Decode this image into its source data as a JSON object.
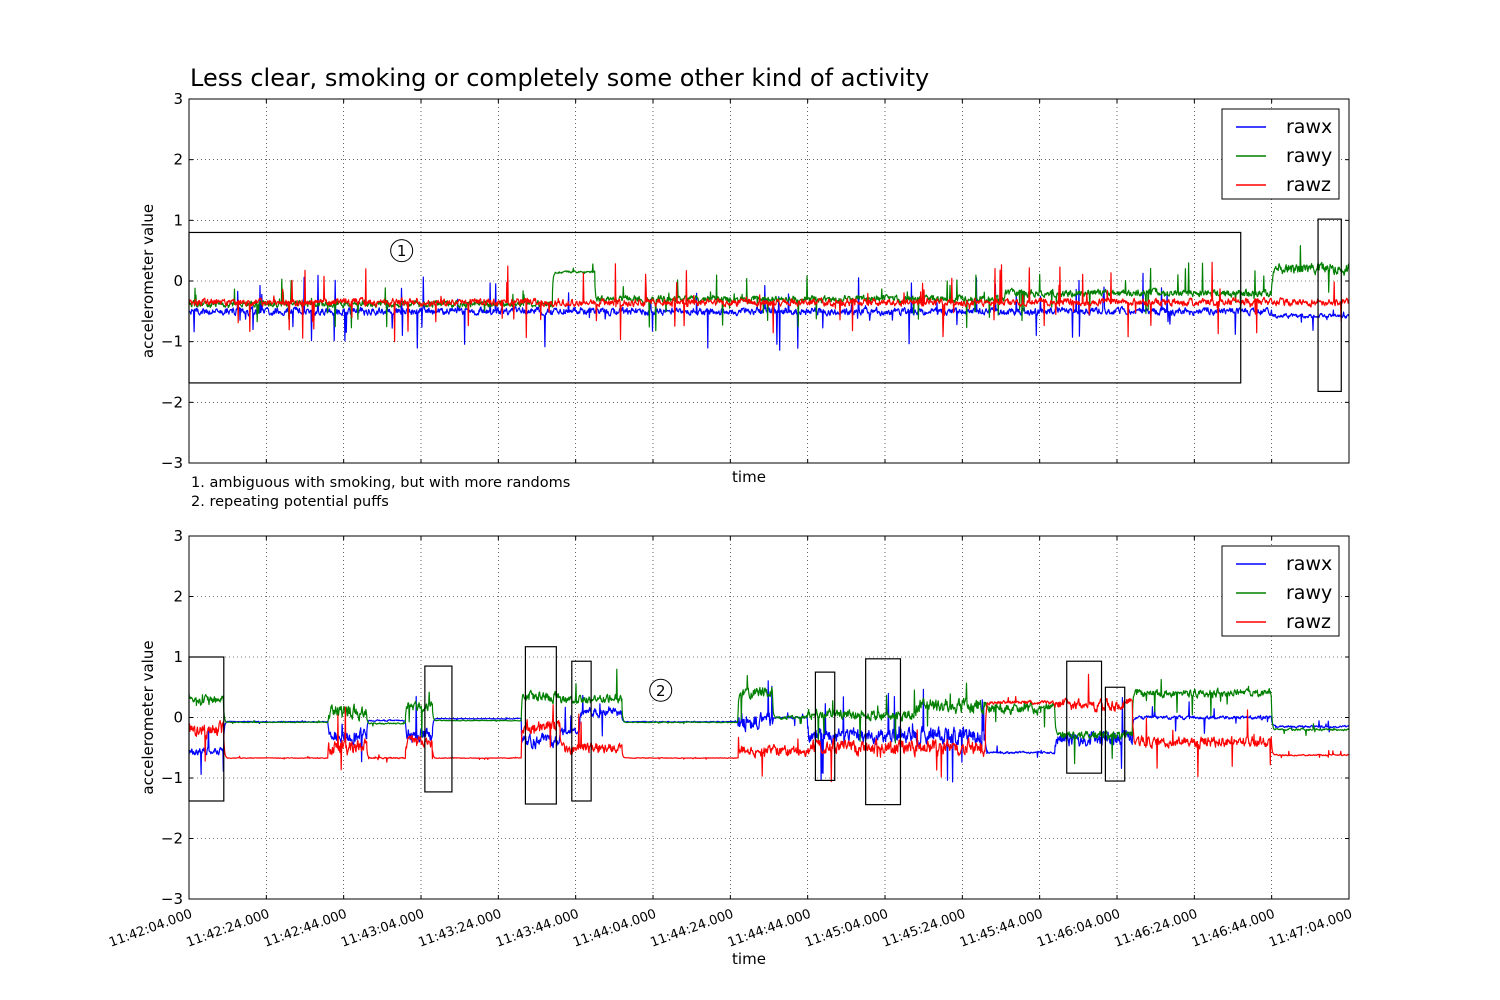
{
  "figure": {
    "title": "Less clear, smoking or completely some other kind of activity",
    "notes": [
      "1. ambiguous with smoking, but with more randoms",
      "2. repeating potential puffs"
    ]
  },
  "chart_data": [
    {
      "type": "line",
      "title": "Less clear, smoking or completely some other kind of activity",
      "xlabel": "time",
      "ylabel": "accelerometer value",
      "ylim": [
        -3,
        3
      ],
      "yticks": [
        -3,
        -2,
        -1,
        0,
        1,
        2,
        3
      ],
      "xlim": [
        "11:42:04.000",
        "11:47:04.000"
      ],
      "xticks": [
        "11:42:04.000",
        "11:42:24.000",
        "11:42:44.000",
        "11:43:04.000",
        "11:43:24.000",
        "11:43:44.000",
        "11:44:04.000",
        "11:44:24.000",
        "11:44:44.000",
        "11:45:04.000",
        "11:45:24.000",
        "11:45:44.000",
        "11:46:04.000",
        "11:46:24.000",
        "11:46:44.000",
        "11:47:04.000"
      ],
      "show_xtick_labels": false,
      "grid": true,
      "legend": "top-right",
      "series": [
        {
          "name": "rawx",
          "color": "#0000ff",
          "segments": [
            {
              "from": "11:42:04.000",
              "to": "11:46:44.000",
              "level": -0.5,
              "noise": 0.1,
              "spike": 0.45
            },
            {
              "from": "11:46:44.000",
              "to": "11:47:04.000",
              "level": -0.58,
              "noise": 0.06,
              "spike": 0.25
            }
          ]
        },
        {
          "name": "rawy",
          "color": "#008000",
          "segments": [
            {
              "from": "11:42:04.000",
              "to": "11:43:38.000",
              "level": -0.38,
              "noise": 0.09,
              "spike": 0.3
            },
            {
              "from": "11:43:38.000",
              "to": "11:43:49.000",
              "level": 0.15,
              "noise": 0.03,
              "spike": 0.1
            },
            {
              "from": "11:43:49.000",
              "to": "11:45:35.000",
              "level": -0.3,
              "noise": 0.1,
              "spike": 0.35
            },
            {
              "from": "11:45:35.000",
              "to": "11:46:44.000",
              "level": -0.2,
              "noise": 0.1,
              "spike": 0.35
            },
            {
              "from": "11:46:44.000",
              "to": "11:47:04.000",
              "level": 0.2,
              "noise": 0.15,
              "spike": 0.3
            }
          ]
        },
        {
          "name": "rawz",
          "color": "#ff0000",
          "segments": [
            {
              "from": "11:42:04.000",
              "to": "11:47:04.000",
              "level": -0.35,
              "noise": 0.1,
              "spike": 0.45
            }
          ]
        }
      ],
      "annotations": [
        {
          "type": "box",
          "x": [
            "11:42:04.000",
            "11:46:36.000"
          ],
          "y": [
            -1.68,
            0.8
          ]
        },
        {
          "type": "box",
          "x": [
            "11:46:56.000",
            "11:47:02.000"
          ],
          "y": [
            -1.82,
            1.02
          ]
        },
        {
          "type": "marker",
          "label": "1",
          "x": "11:42:59.000",
          "y": 0.5
        }
      ]
    },
    {
      "type": "line",
      "xlabel": "time",
      "ylabel": "accelerometer value",
      "ylim": [
        -3,
        3
      ],
      "yticks": [
        -3,
        -2,
        -1,
        0,
        1,
        2,
        3
      ],
      "xlim": [
        "11:42:04.000",
        "11:47:04.000"
      ],
      "xticks": [
        "11:42:04.000",
        "11:42:24.000",
        "11:42:44.000",
        "11:43:04.000",
        "11:43:24.000",
        "11:43:44.000",
        "11:44:04.000",
        "11:44:24.000",
        "11:44:44.000",
        "11:45:04.000",
        "11:45:24.000",
        "11:45:44.000",
        "11:46:04.000",
        "11:46:24.000",
        "11:46:44.000",
        "11:47:04.000"
      ],
      "show_xtick_labels": true,
      "grid": true,
      "legend": "top-right",
      "series": [
        {
          "name": "rawx",
          "color": "#0000ff",
          "segments": [
            {
              "from": "11:42:04.000",
              "to": "11:42:13.000",
              "level": -0.55,
              "noise": 0.1,
              "spike": 0.4
            },
            {
              "from": "11:42:13.000",
              "to": "11:42:40.000",
              "level": -0.07,
              "noise": 0.01,
              "spike": 0.02
            },
            {
              "from": "11:42:40.000",
              "to": "11:42:50.000",
              "level": -0.3,
              "noise": 0.2,
              "spike": 0.6
            },
            {
              "from": "11:42:50.000",
              "to": "11:43:00.000",
              "level": -0.05,
              "noise": 0.02,
              "spike": 0.05
            },
            {
              "from": "11:43:00.000",
              "to": "11:43:07.000",
              "level": -0.3,
              "noise": 0.2,
              "spike": 0.5
            },
            {
              "from": "11:43:07.000",
              "to": "11:43:30.000",
              "level": -0.02,
              "noise": 0.01,
              "spike": 0.02
            },
            {
              "from": "11:43:30.000",
              "to": "11:43:40.000",
              "level": -0.4,
              "noise": 0.2,
              "spike": 0.7
            },
            {
              "from": "11:43:40.000",
              "to": "11:43:45.000",
              "level": -0.25,
              "noise": 0.1,
              "spike": 0.3
            },
            {
              "from": "11:43:45.000",
              "to": "11:43:56.000",
              "level": 0.08,
              "noise": 0.12,
              "spike": 0.3
            },
            {
              "from": "11:43:56.000",
              "to": "11:44:26.000",
              "level": -0.07,
              "noise": 0.01,
              "spike": 0.02
            },
            {
              "from": "11:44:26.000",
              "to": "11:44:35.000",
              "level": -0.1,
              "noise": 0.25,
              "spike": 0.5
            },
            {
              "from": "11:44:35.000",
              "to": "11:44:44.000",
              "level": 0.0,
              "noise": 0.03,
              "spike": 0.1
            },
            {
              "from": "11:44:44.000",
              "to": "11:45:12.000",
              "level": -0.3,
              "noise": 0.2,
              "spike": 0.6
            },
            {
              "from": "11:45:12.000",
              "to": "11:45:30.000",
              "level": -0.3,
              "noise": 0.25,
              "spike": 0.6
            },
            {
              "from": "11:45:30.000",
              "to": "11:45:48.000",
              "level": -0.58,
              "noise": 0.03,
              "spike": 0.1
            },
            {
              "from": "11:45:48.000",
              "to": "11:46:08.000",
              "level": -0.35,
              "noise": 0.2,
              "spike": 0.5
            },
            {
              "from": "11:46:08.000",
              "to": "11:46:44.000",
              "level": 0.0,
              "noise": 0.05,
              "spike": 0.2
            },
            {
              "from": "11:46:44.000",
              "to": "11:47:04.000",
              "level": -0.15,
              "noise": 0.03,
              "spike": 0.08
            }
          ]
        },
        {
          "name": "rawy",
          "color": "#008000",
          "segments": [
            {
              "from": "11:42:04.000",
              "to": "11:42:13.000",
              "level": 0.3,
              "noise": 0.1,
              "spike": 0.3
            },
            {
              "from": "11:42:13.000",
              "to": "11:42:40.000",
              "level": -0.08,
              "noise": 0.01,
              "spike": 0.02
            },
            {
              "from": "11:42:40.000",
              "to": "11:42:50.000",
              "level": 0.1,
              "noise": 0.2,
              "spike": 0.4
            },
            {
              "from": "11:42:50.000",
              "to": "11:43:00.000",
              "level": -0.1,
              "noise": 0.02,
              "spike": 0.05
            },
            {
              "from": "11:43:00.000",
              "to": "11:43:07.000",
              "level": 0.2,
              "noise": 0.15,
              "spike": 0.4
            },
            {
              "from": "11:43:07.000",
              "to": "11:43:30.000",
              "level": -0.05,
              "noise": 0.01,
              "spike": 0.02
            },
            {
              "from": "11:43:30.000",
              "to": "11:43:40.000",
              "level": 0.35,
              "noise": 0.15,
              "spike": 0.5
            },
            {
              "from": "11:43:40.000",
              "to": "11:43:56.000",
              "level": 0.3,
              "noise": 0.12,
              "spike": 0.35
            },
            {
              "from": "11:43:56.000",
              "to": "11:44:26.000",
              "level": -0.08,
              "noise": 0.01,
              "spike": 0.02
            },
            {
              "from": "11:44:26.000",
              "to": "11:44:35.000",
              "level": 0.4,
              "noise": 0.15,
              "spike": 0.3
            },
            {
              "from": "11:44:35.000",
              "to": "11:44:44.000",
              "level": 0.0,
              "noise": 0.05,
              "spike": 0.1
            },
            {
              "from": "11:44:44.000",
              "to": "11:45:12.000",
              "level": 0.05,
              "noise": 0.15,
              "spike": 0.4
            },
            {
              "from": "11:45:12.000",
              "to": "11:45:30.000",
              "level": 0.2,
              "noise": 0.2,
              "spike": 0.5
            },
            {
              "from": "11:45:30.000",
              "to": "11:45:48.000",
              "level": 0.15,
              "noise": 0.15,
              "spike": 0.4
            },
            {
              "from": "11:45:48.000",
              "to": "11:46:08.000",
              "level": -0.3,
              "noise": 0.12,
              "spike": 0.4
            },
            {
              "from": "11:46:08.000",
              "to": "11:46:44.000",
              "level": 0.4,
              "noise": 0.12,
              "spike": 0.3
            },
            {
              "from": "11:46:44.000",
              "to": "11:47:04.000",
              "level": -0.2,
              "noise": 0.03,
              "spike": 0.08
            }
          ]
        },
        {
          "name": "rawz",
          "color": "#ff0000",
          "segments": [
            {
              "from": "11:42:04.000",
              "to": "11:42:13.000",
              "level": -0.2,
              "noise": 0.2,
              "spike": 0.5
            },
            {
              "from": "11:42:13.000",
              "to": "11:42:40.000",
              "level": -0.67,
              "noise": 0.01,
              "spike": 0.02
            },
            {
              "from": "11:42:40.000",
              "to": "11:42:50.000",
              "level": -0.5,
              "noise": 0.2,
              "spike": 0.4
            },
            {
              "from": "11:42:50.000",
              "to": "11:43:00.000",
              "level": -0.67,
              "noise": 0.02,
              "spike": 0.05
            },
            {
              "from": "11:43:00.000",
              "to": "11:43:07.000",
              "level": -0.4,
              "noise": 0.15,
              "spike": 0.3
            },
            {
              "from": "11:43:07.000",
              "to": "11:43:30.000",
              "level": -0.67,
              "noise": 0.01,
              "spike": 0.02
            },
            {
              "from": "11:43:30.000",
              "to": "11:43:40.000",
              "level": -0.15,
              "noise": 0.2,
              "spike": 0.4
            },
            {
              "from": "11:43:40.000",
              "to": "11:43:56.000",
              "level": -0.5,
              "noise": 0.15,
              "spike": 0.4
            },
            {
              "from": "11:43:56.000",
              "to": "11:44:26.000",
              "level": -0.67,
              "noise": 0.01,
              "spike": 0.02
            },
            {
              "from": "11:44:26.000",
              "to": "11:44:44.000",
              "level": -0.55,
              "noise": 0.15,
              "spike": 0.3
            },
            {
              "from": "11:44:44.000",
              "to": "11:45:30.000",
              "level": -0.5,
              "noise": 0.2,
              "spike": 0.5
            },
            {
              "from": "11:45:30.000",
              "to": "11:45:48.000",
              "level": 0.25,
              "noise": 0.05,
              "spike": 0.15
            },
            {
              "from": "11:45:48.000",
              "to": "11:46:08.000",
              "level": 0.2,
              "noise": 0.15,
              "spike": 0.4
            },
            {
              "from": "11:46:08.000",
              "to": "11:46:44.000",
              "level": -0.4,
              "noise": 0.15,
              "spike": 0.4
            },
            {
              "from": "11:46:44.000",
              "to": "11:47:04.000",
              "level": -0.62,
              "noise": 0.02,
              "spike": 0.05
            }
          ]
        }
      ],
      "annotations": [
        {
          "type": "box",
          "x": [
            "11:42:04.000",
            "11:42:13.000"
          ],
          "y": [
            -1.38,
            1.0
          ]
        },
        {
          "type": "box",
          "x": [
            "11:43:05.000",
            "11:43:12.000"
          ],
          "y": [
            -1.23,
            0.85
          ]
        },
        {
          "type": "box",
          "x": [
            "11:43:31.000",
            "11:43:39.000"
          ],
          "y": [
            -1.43,
            1.17
          ]
        },
        {
          "type": "box",
          "x": [
            "11:43:43.000",
            "11:43:48.000"
          ],
          "y": [
            -1.38,
            0.93
          ]
        },
        {
          "type": "box",
          "x": [
            "11:44:46.000",
            "11:44:51.000"
          ],
          "y": [
            -1.04,
            0.75
          ]
        },
        {
          "type": "box",
          "x": [
            "11:44:59.000",
            "11:45:08.000"
          ],
          "y": [
            -1.44,
            0.97
          ]
        },
        {
          "type": "box",
          "x": [
            "11:45:51.000",
            "11:46:00.000"
          ],
          "y": [
            -0.92,
            0.93
          ]
        },
        {
          "type": "box",
          "x": [
            "11:46:01.000",
            "11:46:06.000"
          ],
          "y": [
            -1.05,
            0.5
          ]
        },
        {
          "type": "marker",
          "label": "2",
          "x": "11:44:06.000",
          "y": 0.45
        }
      ]
    }
  ]
}
